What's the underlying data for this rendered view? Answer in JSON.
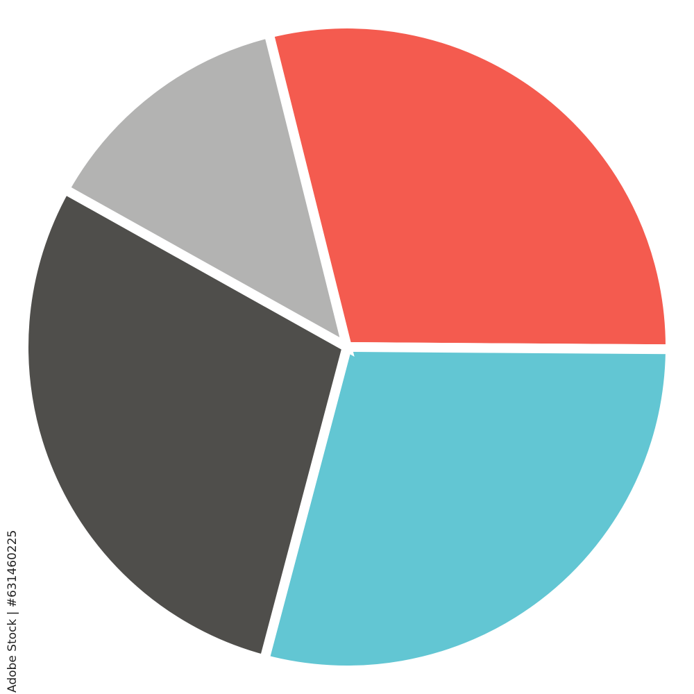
{
  "chart_data": {
    "type": "pie",
    "title": "",
    "start_angle_deg": 256,
    "direction": "clockwise",
    "slices": [
      {
        "value": 29,
        "color": "#F45B4F"
      },
      {
        "value": 29,
        "color": "#62C6D3"
      },
      {
        "value": 29,
        "color": "#4F4E4B"
      },
      {
        "value": 13,
        "color": "#B3B3B2"
      }
    ],
    "legend": "none",
    "data_labels": "none"
  },
  "watermark": {
    "text": "Adobe Stock",
    "id": "Adobe Stock | #631460225"
  }
}
